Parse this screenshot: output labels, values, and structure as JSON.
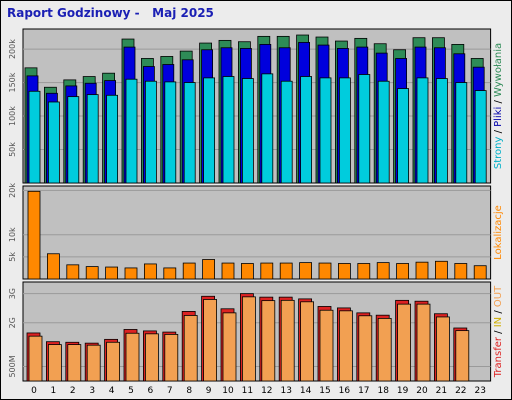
{
  "title": "Raport Godzinowy -   Maj 2025",
  "colors": {
    "background": "#ececec",
    "panel": "#c0c0c0",
    "visits": "#2e8b57",
    "pages": "#0000dd",
    "hits": "#00ccdd",
    "files_label": "#0000aa",
    "sites": "#ff8800",
    "kb_in": "#dd2222",
    "kb_out": "#f2a052",
    "title": "#1a1fb4"
  },
  "chart_data": [
    {
      "type": "bar",
      "name": "strony",
      "categories": [
        "0",
        "1",
        "2",
        "3",
        "4",
        "5",
        "6",
        "7",
        "8",
        "9",
        "10",
        "11",
        "12",
        "13",
        "14",
        "15",
        "16",
        "17",
        "18",
        "19",
        "20",
        "21",
        "22",
        "23"
      ],
      "ylim": [
        0,
        230000
      ],
      "yticks": [
        "50k",
        "100k",
        "150k",
        "200k"
      ],
      "yticks_values": [
        50000,
        100000,
        150000,
        200000
      ],
      "ylabel_parts": [
        {
          "text": "Strony",
          "color": "#00b0c8"
        },
        {
          "text": " / ",
          "color": "#000000"
        },
        {
          "text": "Pliki",
          "color": "#0000aa"
        },
        {
          "text": " / ",
          "color": "#000000"
        },
        {
          "text": "Wywołania",
          "color": "#2e8b57"
        }
      ],
      "series": [
        {
          "values": [
            172000,
            143000,
            154000,
            159000,
            164000,
            215000,
            186000,
            189000,
            197000,
            209000,
            213000,
            211000,
            219000,
            219000,
            221000,
            218000,
            212000,
            216000,
            208000,
            199000,
            217000,
            217000,
            207000,
            186000
          ]
        },
        {
          "values": [
            160000,
            134000,
            145000,
            149000,
            153000,
            203000,
            174000,
            177000,
            184000,
            199000,
            202000,
            201000,
            207000,
            202000,
            210000,
            206000,
            201000,
            203000,
            194000,
            186000,
            203000,
            202000,
            193000,
            173000
          ]
        },
        {
          "values": [
            137000,
            121000,
            129000,
            132000,
            131000,
            155000,
            152000,
            151000,
            150000,
            157000,
            159000,
            156000,
            163000,
            152000,
            159000,
            157000,
            157000,
            162000,
            152000,
            141000,
            157000,
            156000,
            150000,
            138000
          ]
        }
      ]
    },
    {
      "type": "bar",
      "name": "lokalizacje",
      "categories": [
        "0",
        "1",
        "2",
        "3",
        "4",
        "5",
        "6",
        "7",
        "8",
        "9",
        "10",
        "11",
        "12",
        "13",
        "14",
        "15",
        "16",
        "17",
        "18",
        "19",
        "20",
        "21",
        "22",
        "23"
      ],
      "ylim": [
        0,
        21000
      ],
      "yticks": [
        "5k",
        "10k",
        "20k"
      ],
      "yticks_values": [
        5000,
        10000,
        20000
      ],
      "ylabel": "Lokalizacje",
      "series": [
        {
          "values": [
            19800,
            5700,
            3200,
            2800,
            2700,
            2500,
            3400,
            2500,
            3600,
            4400,
            3600,
            3500,
            3600,
            3600,
            3700,
            3600,
            3500,
            3500,
            3700,
            3500,
            3800,
            4000,
            3500,
            3000
          ]
        }
      ]
    },
    {
      "type": "bar",
      "name": "transfer",
      "categories": [
        "0",
        "1",
        "2",
        "3",
        "4",
        "5",
        "6",
        "7",
        "8",
        "9",
        "10",
        "11",
        "12",
        "13",
        "14",
        "15",
        "16",
        "17",
        "18",
        "19",
        "20",
        "21",
        "22",
        "23"
      ],
      "ylim": [
        0,
        3400
      ],
      "yticks": [
        "500M",
        "2G",
        "3G"
      ],
      "yticks_values": [
        500,
        2000,
        3000
      ],
      "ylabel_parts": [
        {
          "text": "Transfer",
          "color": "#dd2222"
        },
        {
          "text": " / ",
          "color": "#000000"
        },
        {
          "text": "IN",
          "color": "#cfae00"
        },
        {
          "text": " / ",
          "color": "#000000"
        },
        {
          "text": "OUT",
          "color": "#f2a052"
        }
      ],
      "series": [
        {
          "values": [
            1650,
            1350,
            1330,
            1300,
            1430,
            1770,
            1720,
            1680,
            2390,
            2910,
            2480,
            3000,
            2880,
            2880,
            2820,
            2560,
            2510,
            2340,
            2260,
            2770,
            2740,
            2310,
            1820,
            0
          ]
        },
        {
          "values": [
            1540,
            1250,
            1250,
            1230,
            1330,
            1640,
            1620,
            1600,
            2250,
            2800,
            2340,
            2890,
            2760,
            2770,
            2720,
            2430,
            2410,
            2240,
            2150,
            2640,
            2640,
            2200,
            1730,
            0
          ]
        }
      ]
    }
  ]
}
